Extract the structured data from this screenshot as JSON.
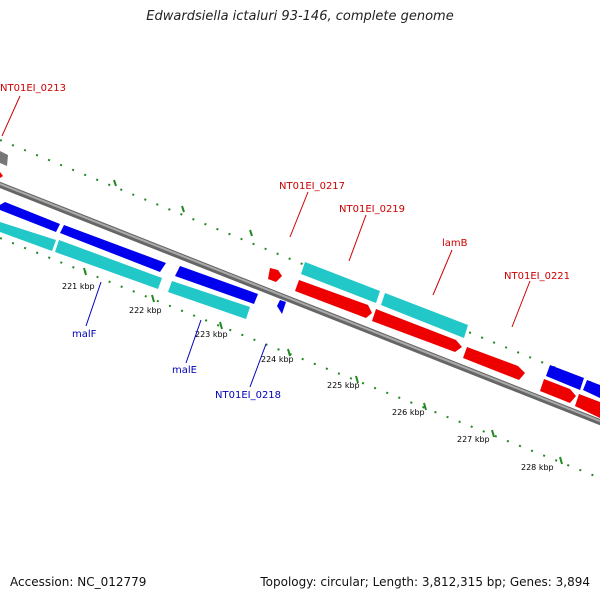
{
  "title": "Edwardsiella ictaluri 93-146, complete genome",
  "footer": {
    "accession": "Accession: NC_012779",
    "topology": "Topology: circular; Length: 3,812,315 bp; Genes: 3,894"
  },
  "colors": {
    "blue_gene": "#0000ee",
    "cyan_gene": "#22c8c8",
    "red_gene": "#ee0000",
    "backbone": "#888888",
    "dots": "#228822",
    "blue_label": "#0000bb",
    "red_label": "#cc0000"
  },
  "ticks": [
    "221 kbp",
    "222 kbp",
    "223 kbp",
    "224 kbp",
    "225 kbp",
    "226 kbp",
    "227 kbp",
    "228 kbp"
  ],
  "gene_labels": {
    "g0213": "NT01EI_0213",
    "g0217": "NT01EI_0217",
    "g0219": "NT01EI_0219",
    "lamB": "lamB",
    "g0221": "NT01EI_0221",
    "malF": "malF",
    "malE": "malE",
    "g0218": "NT01EI_0218"
  }
}
